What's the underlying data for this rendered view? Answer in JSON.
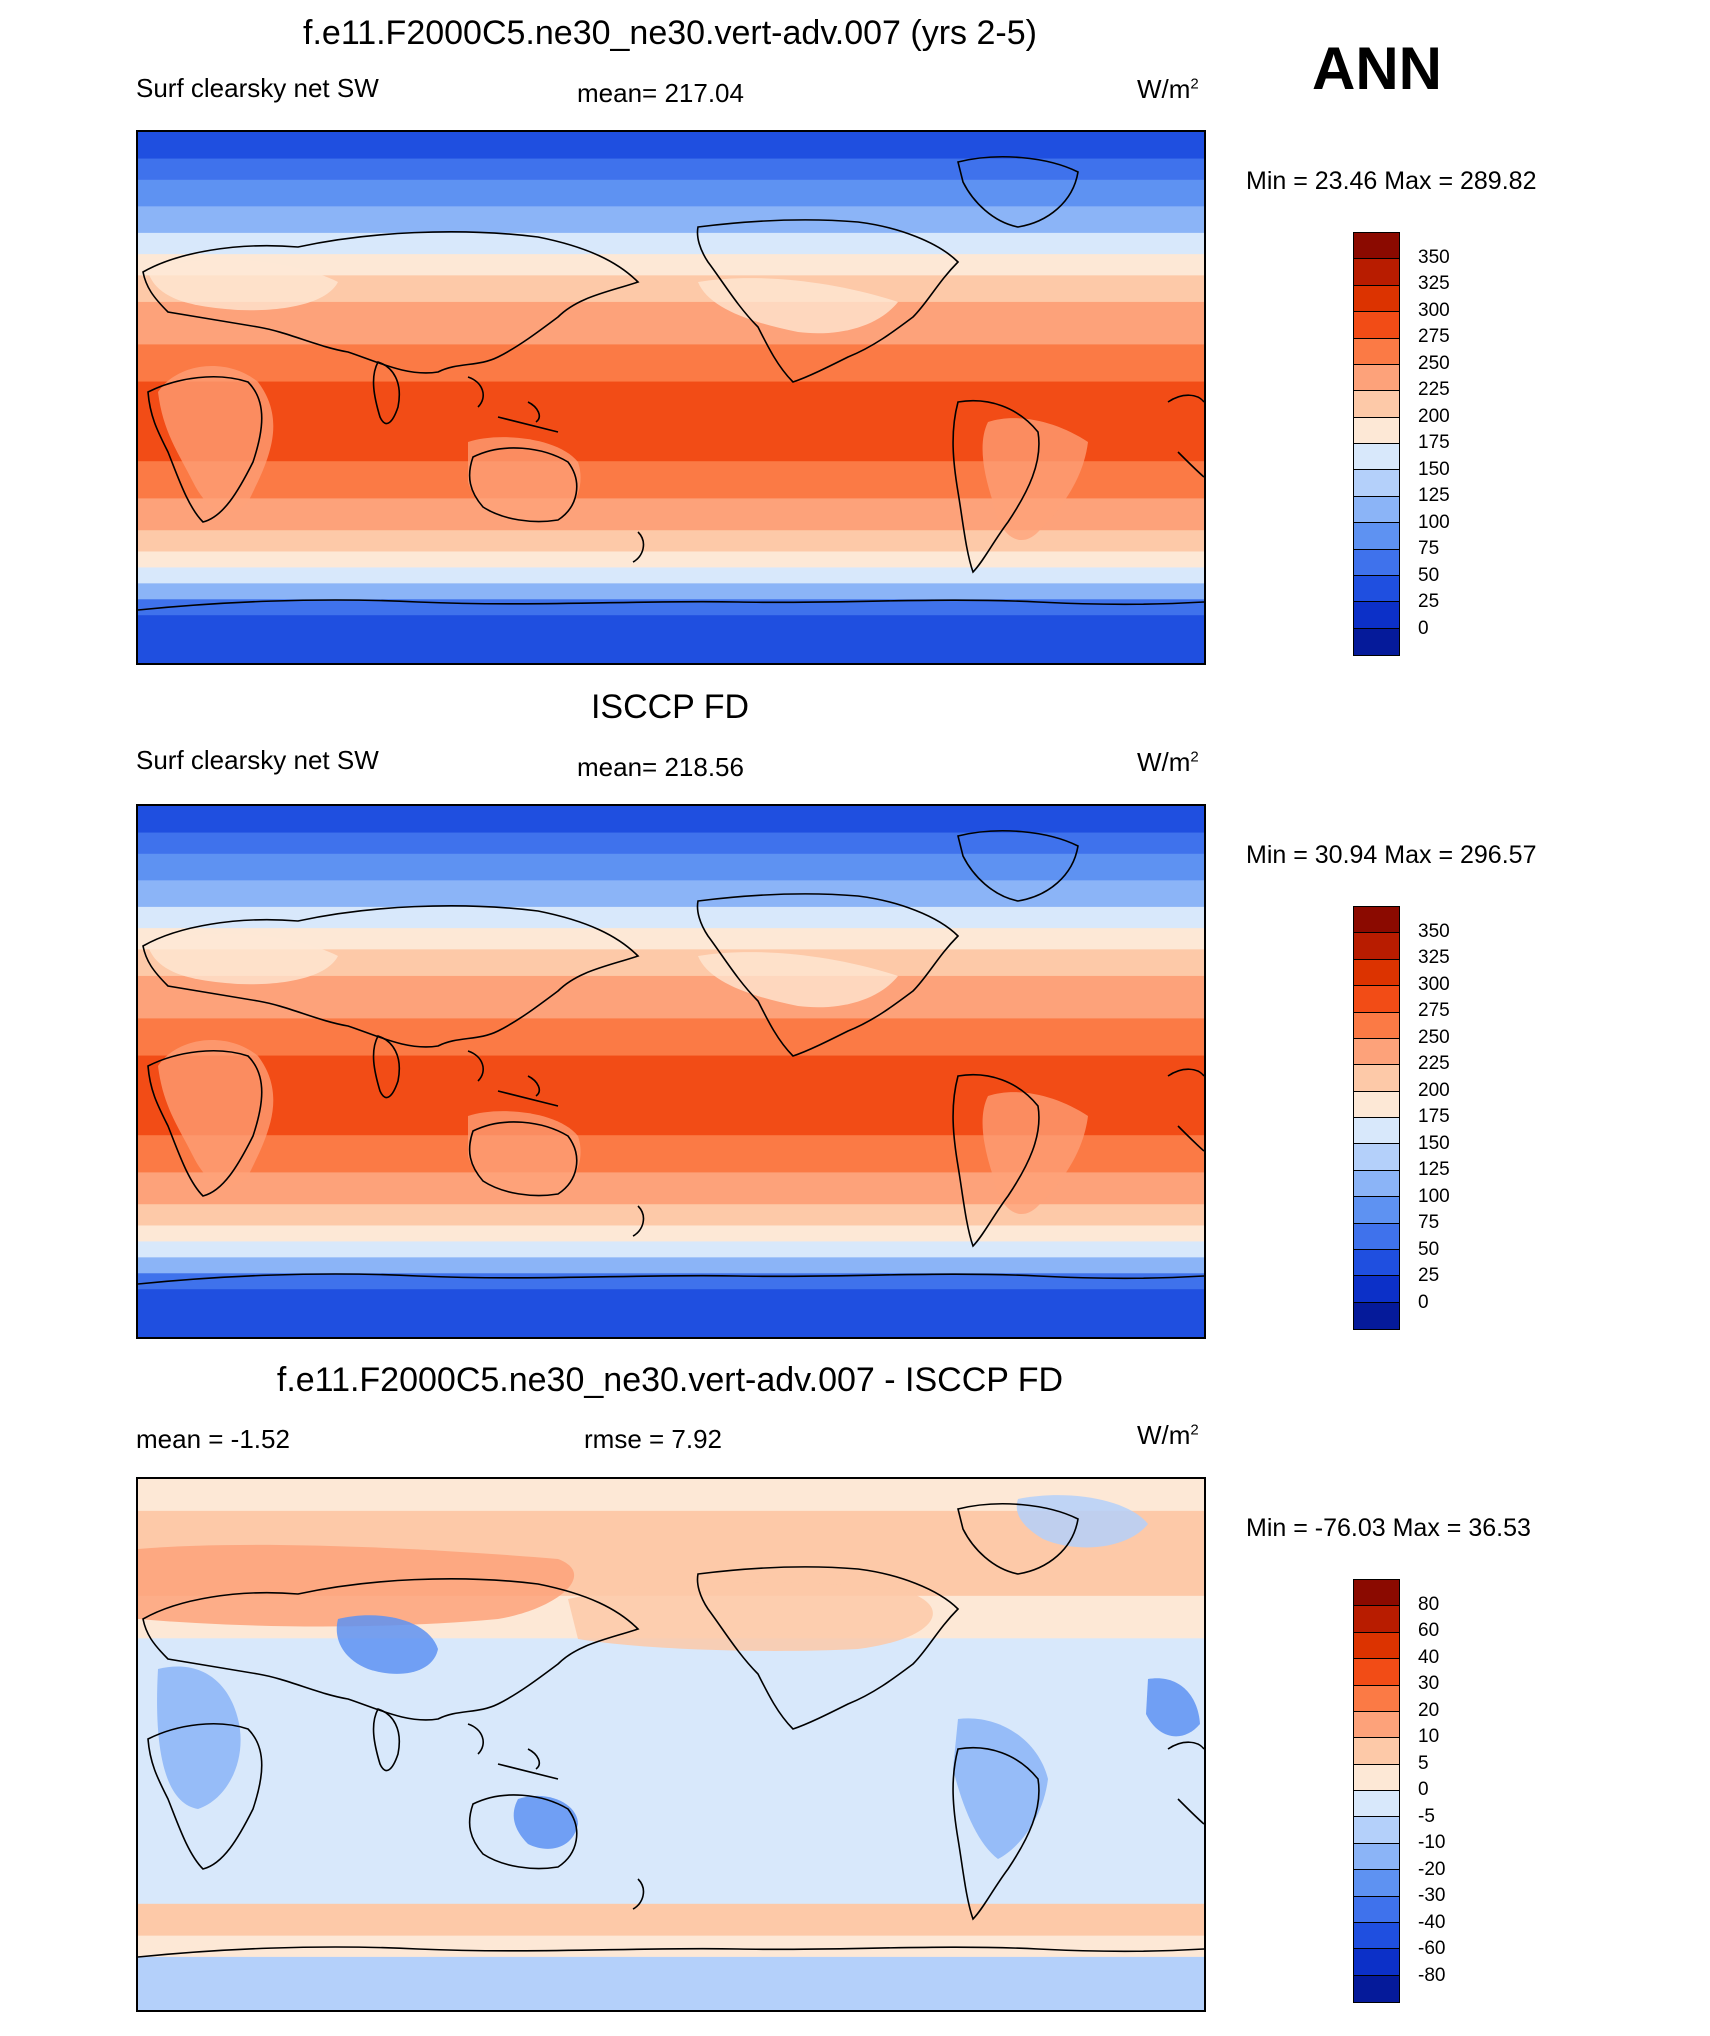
{
  "season": "ANN",
  "units": "W/m",
  "units_sup": "2",
  "panels": [
    {
      "id": "model",
      "title": "f.e11.F2000C5.ne30_ne30.vert-adv.007 (yrs 2-5)",
      "left_label": "Surf clearsky net SW",
      "center_label": "mean= 217.04",
      "minmax": "Min =  23.46 Max = 289.82",
      "colorbar_labels": [
        "350",
        "325",
        "300",
        "275",
        "250",
        "225",
        "200",
        "175",
        "150",
        "125",
        "100",
        "75",
        "50",
        "25",
        "0"
      ],
      "colorbar_colors": [
        "#8b0a00",
        "#b81c00",
        "#dc3300",
        "#f24c16",
        "#fb7a45",
        "#fda27a",
        "#fdc9a8",
        "#fde8d6",
        "#d8e8fb",
        "#b4d0fa",
        "#8bb4f7",
        "#5e92f2",
        "#3f72ec",
        "#1f4fe0",
        "#0c30c8",
        "#051a9a",
        "#000d6e"
      ]
    },
    {
      "id": "obs",
      "title": "ISCCP FD",
      "left_label": "Surf clearsky net SW",
      "center_label": "mean= 218.56",
      "minmax": "Min =  30.94 Max = 296.57",
      "colorbar_labels": [
        "350",
        "325",
        "300",
        "275",
        "250",
        "225",
        "200",
        "175",
        "150",
        "125",
        "100",
        "75",
        "50",
        "25",
        "0"
      ],
      "colorbar_colors": [
        "#8b0a00",
        "#b81c00",
        "#dc3300",
        "#f24c16",
        "#fb7a45",
        "#fda27a",
        "#fdc9a8",
        "#fde8d6",
        "#d8e8fb",
        "#b4d0fa",
        "#8bb4f7",
        "#5e92f2",
        "#3f72ec",
        "#1f4fe0",
        "#0c30c8",
        "#051a9a",
        "#000d6e"
      ]
    },
    {
      "id": "diff",
      "title": "f.e11.F2000C5.ne30_ne30.vert-adv.007 - ISCCP FD",
      "left_label": "mean =  -1.52",
      "center_label": "rmse =   7.92",
      "minmax": "Min = -76.03 Max =  36.53",
      "colorbar_labels": [
        "80",
        "60",
        "40",
        "30",
        "20",
        "10",
        "5",
        "0",
        "-5",
        "-10",
        "-20",
        "-30",
        "-40",
        "-60",
        "-80"
      ],
      "colorbar_colors": [
        "#8b0a00",
        "#b81c00",
        "#dc3300",
        "#f24c16",
        "#fb7a45",
        "#fda27a",
        "#fdc9a8",
        "#fde8d6",
        "#d8e8fb",
        "#b4d0fa",
        "#8bb4f7",
        "#5e92f2",
        "#3f72ec",
        "#1f4fe0",
        "#0c30c8",
        "#051a9a",
        "#000d6e"
      ]
    }
  ]
}
